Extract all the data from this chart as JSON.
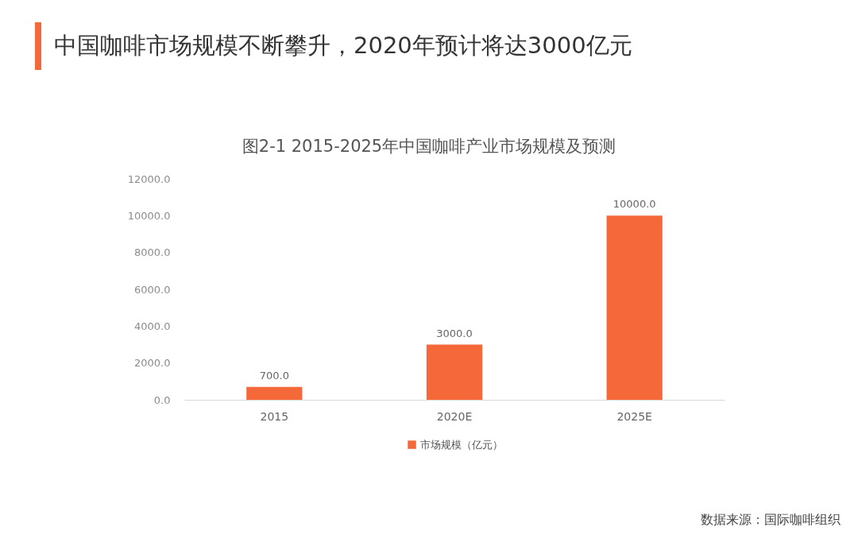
{
  "chart_data": {
    "type": "bar",
    "title": "中国咖啡市场规模不断攀升，2020年预计将达3000亿元",
    "subtitle": "图2-1 2015-2025年中国咖啡产业市场规模及预测",
    "categories": [
      "2015",
      "2020E",
      "2025E"
    ],
    "series": [
      {
        "name": "市场规模（亿元）",
        "color": "#f4683a",
        "values": [
          700,
          3000,
          10000
        ],
        "value_labels": [
          "700.0",
          "3000.0",
          "10000.0"
        ]
      }
    ],
    "ylim": [
      0,
      12000
    ],
    "yticks": [
      {
        "value": 0,
        "label": "0.0"
      },
      {
        "value": 2000,
        "label": "2000.0"
      },
      {
        "value": 4000,
        "label": "4000.0"
      },
      {
        "value": 6000,
        "label": "6000.0"
      },
      {
        "value": 8000,
        "label": "8000.0"
      },
      {
        "value": 10000,
        "label": "10000.0"
      },
      {
        "value": 12000,
        "label": "12000.0"
      }
    ],
    "grid": false,
    "legend": "bottom",
    "annotations": [
      "数据来源：国际咖啡组织"
    ]
  }
}
